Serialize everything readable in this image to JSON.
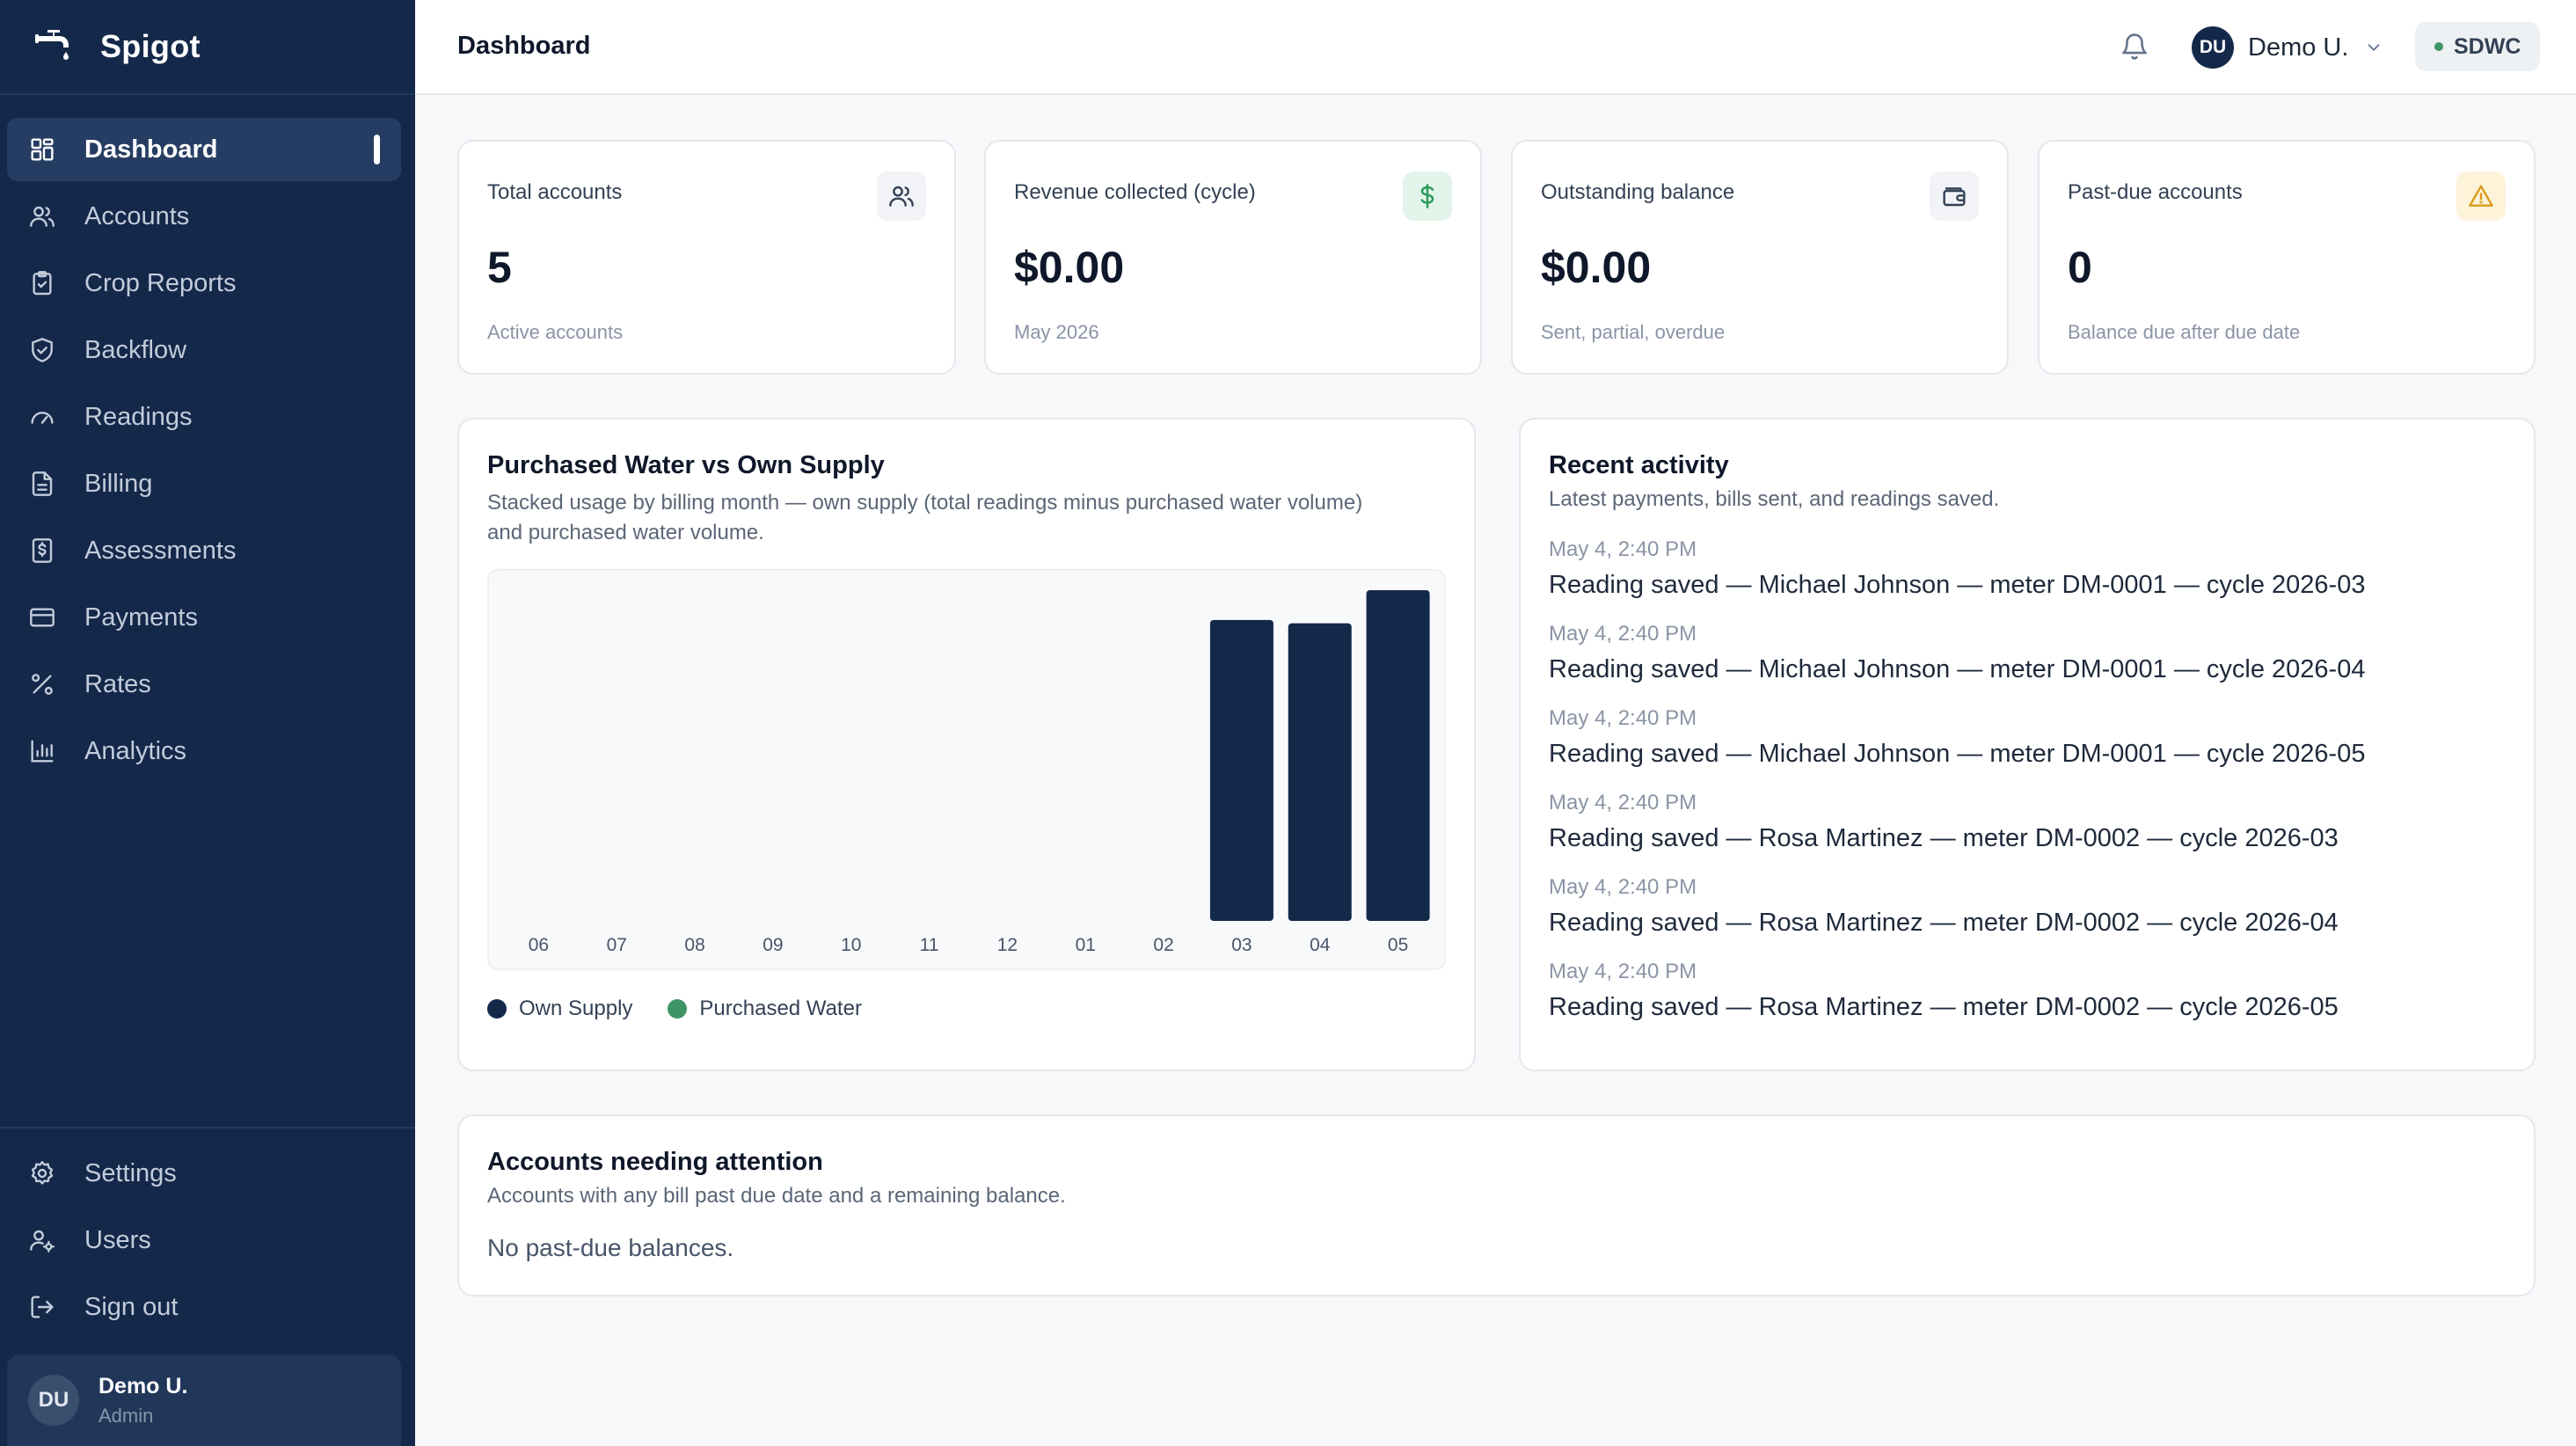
{
  "app": {
    "name": "Spigot"
  },
  "nav": {
    "items": [
      {
        "label": "Dashboard",
        "icon": "dashboard-icon",
        "active": true
      },
      {
        "label": "Accounts",
        "icon": "users-icon"
      },
      {
        "label": "Crop Reports",
        "icon": "clipboard-icon"
      },
      {
        "label": "Backflow",
        "icon": "shield-check-icon"
      },
      {
        "label": "Readings",
        "icon": "gauge-icon"
      },
      {
        "label": "Billing",
        "icon": "file-text-icon"
      },
      {
        "label": "Assessments",
        "icon": "receipt-icon"
      },
      {
        "label": "Payments",
        "icon": "credit-card-icon"
      },
      {
        "label": "Rates",
        "icon": "percent-icon"
      },
      {
        "label": "Analytics",
        "icon": "bar-chart-icon"
      }
    ],
    "bottom": [
      {
        "label": "Settings",
        "icon": "gear-icon"
      },
      {
        "label": "Users",
        "icon": "user-cog-icon"
      },
      {
        "label": "Sign out",
        "icon": "sign-out-icon"
      }
    ]
  },
  "sidebar_user": {
    "initials": "DU",
    "name": "Demo U.",
    "role": "Admin"
  },
  "header": {
    "title": "Dashboard",
    "user_initials": "DU",
    "user_name": "Demo U.",
    "org": "SDWC"
  },
  "stats": [
    {
      "label": "Total accounts",
      "value": "5",
      "sub": "Active accounts",
      "icon": "users-icon",
      "icon_bg": "#f1f3f6",
      "icon_color": "#334155"
    },
    {
      "label": "Revenue collected (cycle)",
      "value": "$0.00",
      "sub": "May 2026",
      "icon": "dollar-icon",
      "icon_bg": "#e3f5ea",
      "icon_color": "#2f9a5d"
    },
    {
      "label": "Outstanding balance",
      "value": "$0.00",
      "sub": "Sent, partial, overdue",
      "icon": "wallet-icon",
      "icon_bg": "#f1f3f6",
      "icon_color": "#334155"
    },
    {
      "label": "Past-due accounts",
      "value": "0",
      "sub": "Balance due after due date",
      "icon": "warning-icon",
      "icon_bg": "#fdf3d9",
      "icon_color": "#d99a1a"
    }
  ],
  "usage": {
    "title": "Purchased Water vs Own Supply",
    "subtitle_line1": "Stacked usage by billing month — own supply (total readings minus purchased water volume)",
    "subtitle_line2": "and purchased water volume."
  },
  "chart_data": {
    "type": "bar",
    "stacked": true,
    "categories": [
      "06",
      "07",
      "08",
      "09",
      "10",
      "11",
      "12",
      "01",
      "02",
      "03",
      "04",
      "05"
    ],
    "series": [
      {
        "name": "Own Supply",
        "color": "#14284a",
        "values": [
          0,
          0,
          0,
          0,
          0,
          0,
          0,
          0,
          0,
          91,
          90,
          100
        ]
      },
      {
        "name": "Purchased Water",
        "color": "#3f9466",
        "values": [
          0,
          0,
          0,
          0,
          0,
          0,
          0,
          0,
          0,
          0,
          0,
          0
        ]
      }
    ],
    "ylim": [
      0,
      100
    ],
    "grid": false,
    "legend": "bottom-left"
  },
  "activity": {
    "title": "Recent activity",
    "subtitle": "Latest payments, bills sent, and readings saved.",
    "items": [
      {
        "time": "May 4, 2:40 PM",
        "text": "Reading saved — Michael Johnson — meter DM-0001 — cycle 2026-03"
      },
      {
        "time": "May 4, 2:40 PM",
        "text": "Reading saved — Michael Johnson — meter DM-0001 — cycle 2026-04"
      },
      {
        "time": "May 4, 2:40 PM",
        "text": "Reading saved — Michael Johnson — meter DM-0001 — cycle 2026-05"
      },
      {
        "time": "May 4, 2:40 PM",
        "text": "Reading saved — Rosa Martinez — meter DM-0002 — cycle 2026-03"
      },
      {
        "time": "May 4, 2:40 PM",
        "text": "Reading saved — Rosa Martinez — meter DM-0002 — cycle 2026-04"
      },
      {
        "time": "May 4, 2:40 PM",
        "text": "Reading saved — Rosa Martinez — meter DM-0002 — cycle 2026-05"
      }
    ]
  },
  "attention": {
    "title": "Accounts needing attention",
    "subtitle": "Accounts with any bill past due date and a remaining balance.",
    "empty": "No past-due balances."
  }
}
